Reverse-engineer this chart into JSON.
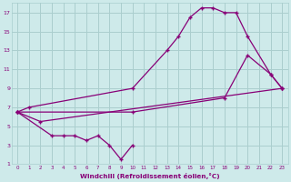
{
  "xlabel": "Windchill (Refroidissement éolien,°C)",
  "bg_color": "#ceeaea",
  "grid_color": "#aacece",
  "line_color": "#880077",
  "xlim": [
    -0.5,
    23.5
  ],
  "ylim": [
    1,
    18
  ],
  "xticks": [
    0,
    1,
    2,
    3,
    4,
    5,
    6,
    7,
    8,
    9,
    10,
    11,
    12,
    13,
    14,
    15,
    16,
    17,
    18,
    19,
    20,
    21,
    22,
    23
  ],
  "yticks": [
    1,
    3,
    5,
    7,
    9,
    11,
    13,
    15,
    17
  ],
  "series": [
    {
      "x": [
        0,
        1,
        10,
        13,
        14,
        15,
        16,
        17,
        18,
        19,
        20,
        22,
        23
      ],
      "y": [
        6.5,
        7.0,
        9.0,
        13.0,
        14.5,
        16.5,
        17.5,
        17.5,
        17.0,
        17.0,
        14.5,
        10.5,
        9.0
      ]
    },
    {
      "x": [
        0,
        2,
        23
      ],
      "y": [
        6.5,
        5.5,
        9.0
      ]
    },
    {
      "x": [
        0,
        3,
        4,
        5,
        6,
        7,
        8,
        9,
        10
      ],
      "y": [
        6.5,
        4.0,
        4.0,
        4.0,
        3.5,
        4.0,
        3.0,
        1.5,
        3.0
      ]
    },
    {
      "x": [
        0,
        10,
        18,
        20,
        22,
        23
      ],
      "y": [
        6.5,
        6.5,
        8.0,
        12.5,
        10.5,
        9.0
      ]
    }
  ]
}
